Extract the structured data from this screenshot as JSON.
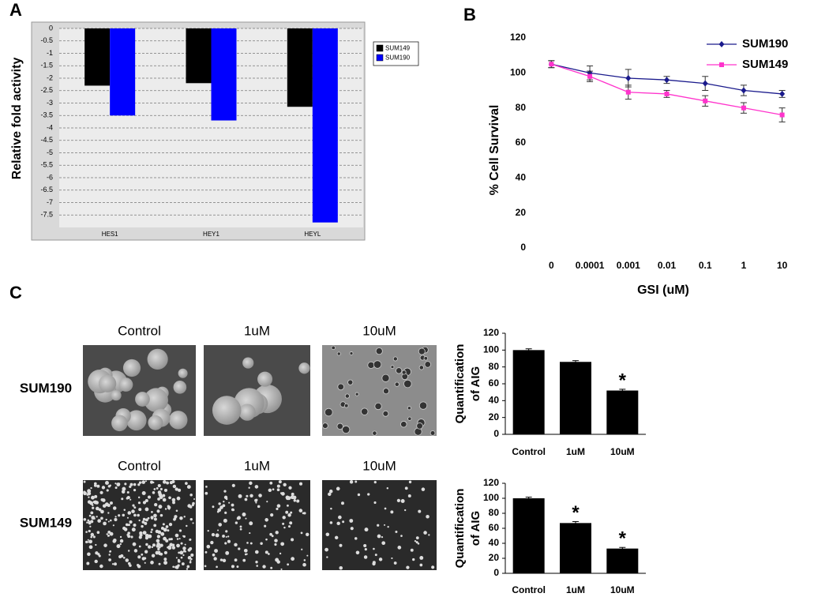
{
  "chart_data": [
    {
      "type": "bar",
      "panel_label": "A",
      "ylabel": "Relative fold activity",
      "categories": [
        "HES1",
        "HEY1",
        "HEYL"
      ],
      "series": [
        {
          "name": "SUM149",
          "color": "#000000",
          "values": [
            -2.3,
            -2.2,
            -3.15
          ]
        },
        {
          "name": "SUM190",
          "color": "#0000ff",
          "values": [
            -3.5,
            -3.7,
            -7.8
          ]
        }
      ],
      "ylim": [
        -8,
        0
      ],
      "yticks": [
        0,
        -0.5,
        -1,
        -1.5,
        -2,
        -2.5,
        -3,
        -3.5,
        -4,
        -4.5,
        -5,
        -5.5,
        -6,
        -6.5,
        -7,
        -7.5
      ],
      "grid": true,
      "legend": "right"
    },
    {
      "type": "line",
      "panel_label": "B",
      "ylabel": "% Cell Survival",
      "xlabel": "GSI (uM)",
      "categories": [
        "0",
        "0.0001",
        "0.001",
        "0.01",
        "0.1",
        "1",
        "10"
      ],
      "series": [
        {
          "name": "SUM190",
          "color": "#1a1a8c",
          "marker": "diamond",
          "values": [
            105,
            100,
            97,
            96,
            94,
            90,
            88
          ],
          "errors": [
            2,
            4,
            5,
            2,
            4,
            3,
            2
          ]
        },
        {
          "name": "SUM149",
          "color": "#ff33cc",
          "marker": "square",
          "values": [
            105,
            98,
            89,
            88,
            84,
            80,
            76
          ],
          "errors": [
            2,
            3,
            4,
            2,
            3,
            3,
            4
          ]
        }
      ],
      "ylim": [
        0,
        120
      ],
      "yticks": [
        0,
        20,
        40,
        60,
        80,
        100,
        120
      ],
      "legend": "top-right"
    },
    {
      "type": "bar",
      "ylabel": [
        "Quantification",
        "of AIG"
      ],
      "categories": [
        "Control",
        "1uM",
        "10uM"
      ],
      "color": "#000000",
      "values": [
        100,
        86,
        52
      ],
      "errors": [
        1.5,
        1.5,
        1.5
      ],
      "significance": [
        null,
        null,
        "*"
      ],
      "ylim": [
        0,
        120
      ],
      "yticks": [
        0,
        20,
        40,
        60,
        80,
        100,
        120
      ]
    },
    {
      "type": "bar",
      "ylabel": [
        "Quantification",
        "of AIG"
      ],
      "categories": [
        "Control",
        "1uM",
        "10uM"
      ],
      "color": "#000000",
      "values": [
        100,
        67,
        33
      ],
      "errors": [
        1.5,
        2,
        1.5
      ],
      "significance": [
        null,
        "*",
        "*"
      ],
      "ylim": [
        0,
        120
      ],
      "yticks": [
        0,
        20,
        40,
        60,
        80,
        100,
        120
      ]
    }
  ],
  "panel_c": {
    "label": "C",
    "rows": [
      {
        "name": "SUM190",
        "columns": [
          "Control",
          "1uM",
          "10uM"
        ]
      },
      {
        "name": "SUM149",
        "columns": [
          "Control",
          "1uM",
          "10uM"
        ]
      }
    ]
  }
}
